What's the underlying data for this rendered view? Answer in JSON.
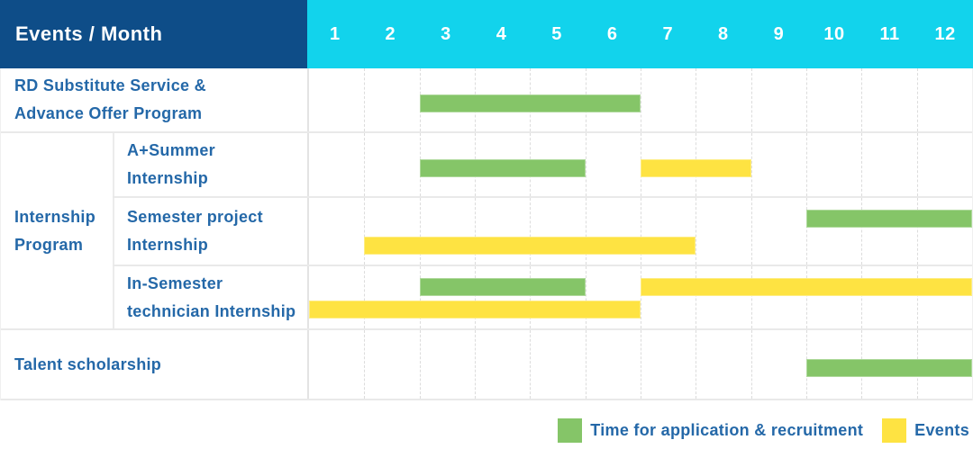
{
  "header": {
    "title": "Events / Month"
  },
  "months": [
    "1",
    "2",
    "3",
    "4",
    "5",
    "6",
    "7",
    "8",
    "9",
    "10",
    "11",
    "12"
  ],
  "legend": [
    {
      "key": "recruitment",
      "label": "Time for application & recruitment",
      "color": "#85C568"
    },
    {
      "key": "events",
      "label": "Events",
      "color": "#FEE342"
    }
  ],
  "colors": {
    "header_bg": "#0E4D88",
    "month_strip_bg": "#12D3EC",
    "recruitment_bar": "#85C568",
    "events_bar": "#FEE342",
    "label_text": "#2468A8",
    "header_text": "#FFFFFF"
  },
  "chart_data": {
    "type": "table",
    "subtype": "gantt-schedule",
    "title": "Events / Month",
    "x_unit": "month",
    "x_range": [
      1,
      12
    ],
    "grid": "dashed-vertical-month-lines",
    "legend_position": "bottom-right",
    "group_label_lines": [
      "Internship",
      "Program"
    ],
    "series": [
      {
        "key": "recruitment",
        "name": "Time for application & recruitment",
        "color": "#85C568"
      },
      {
        "key": "events",
        "name": "Events",
        "color": "#FEE342"
      }
    ],
    "rows": [
      {
        "group": "",
        "label": "RD Substitute Service & Advance Offer Program",
        "label_lines": [
          "RD Substitute Service &",
          "Advance Offer Program"
        ],
        "bars": [
          {
            "series": "recruitment",
            "start_month": 3,
            "end_month": 6,
            "lane": "mid"
          }
        ]
      },
      {
        "group": "Internship Program",
        "label": "A+Summer Internship",
        "label_lines": [
          "A+Summer",
          "Internship"
        ],
        "bars": [
          {
            "series": "recruitment",
            "start_month": 3,
            "end_month": 5,
            "lane": "mid"
          },
          {
            "series": "events",
            "start_month": 7,
            "end_month": 8,
            "lane": "mid"
          }
        ]
      },
      {
        "group": "Internship Program",
        "label": "Semester project Internship",
        "label_lines": [
          "Semester project",
          "Internship"
        ],
        "bars": [
          {
            "series": "recruitment",
            "start_month": 10,
            "end_month": 12,
            "lane": "top"
          },
          {
            "series": "events",
            "start_month": 2,
            "end_month": 7,
            "lane": "bottom"
          }
        ]
      },
      {
        "group": "Internship Program",
        "label": "In-Semester technician Internship",
        "label_lines": [
          "In-Semester",
          "technician Internship"
        ],
        "bars": [
          {
            "series": "recruitment",
            "start_month": 3,
            "end_month": 5,
            "lane": "top"
          },
          {
            "series": "events",
            "start_month": 7,
            "end_month": 12,
            "lane": "top"
          },
          {
            "series": "events",
            "start_month": 1,
            "end_month": 6,
            "lane": "bottom"
          }
        ]
      },
      {
        "group": "",
        "label": "Talent scholarship",
        "label_lines": [
          "Talent scholarship"
        ],
        "bars": [
          {
            "series": "recruitment",
            "start_month": 10,
            "end_month": 12,
            "lane": "mid"
          }
        ]
      }
    ]
  }
}
